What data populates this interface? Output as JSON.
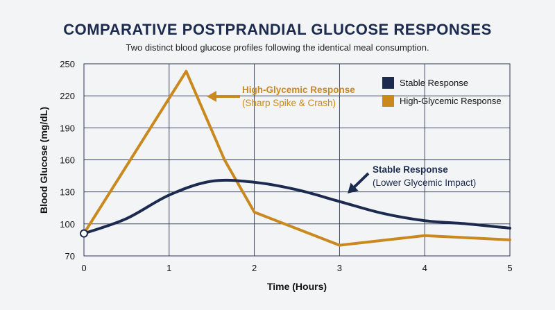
{
  "chart_data": {
    "type": "line",
    "title": "COMPARATIVE POSTPRANDIAL GLUCOSE RESPONSES",
    "subtitle": "Two distinct blood glucose profiles following the identical meal consumption.",
    "xlabel": "Time (Hours)",
    "ylabel": "Blood Glucose (mg/dL)",
    "xlim": [
      0,
      5
    ],
    "ylim": [
      70,
      250
    ],
    "xticks": [
      0,
      1,
      2,
      3,
      4,
      5
    ],
    "yticks": [
      70,
      100,
      130,
      160,
      190,
      220,
      250
    ],
    "grid": true,
    "legend_position": "top-right",
    "series": [
      {
        "name": "Stable Response",
        "color": "#1b2a4e",
        "smooth": true,
        "points": [
          [
            0,
            91
          ],
          [
            0.5,
            105
          ],
          [
            1,
            127
          ],
          [
            1.5,
            140
          ],
          [
            2,
            139
          ],
          [
            2.5,
            132
          ],
          [
            3,
            121
          ],
          [
            3.5,
            110
          ],
          [
            4,
            103
          ],
          [
            4.5,
            100
          ],
          [
            5,
            96
          ]
        ]
      },
      {
        "name": "High-Glycemic Response",
        "color": "#c9891f",
        "smooth": false,
        "points": [
          [
            0,
            91
          ],
          [
            1.2,
            243
          ],
          [
            1.65,
            160
          ],
          [
            2,
            111
          ],
          [
            3,
            80
          ],
          [
            4,
            89
          ],
          [
            5,
            85
          ]
        ]
      }
    ],
    "annotations": [
      {
        "series": 1,
        "title": "High-Glycemic Response",
        "detail": "(Sharp Spike & Crash)",
        "color": "#c9891f"
      },
      {
        "series": 0,
        "title": "Stable Response",
        "detail": "(Lower Glycemic Impact)",
        "color": "#1b2a4e"
      }
    ]
  }
}
